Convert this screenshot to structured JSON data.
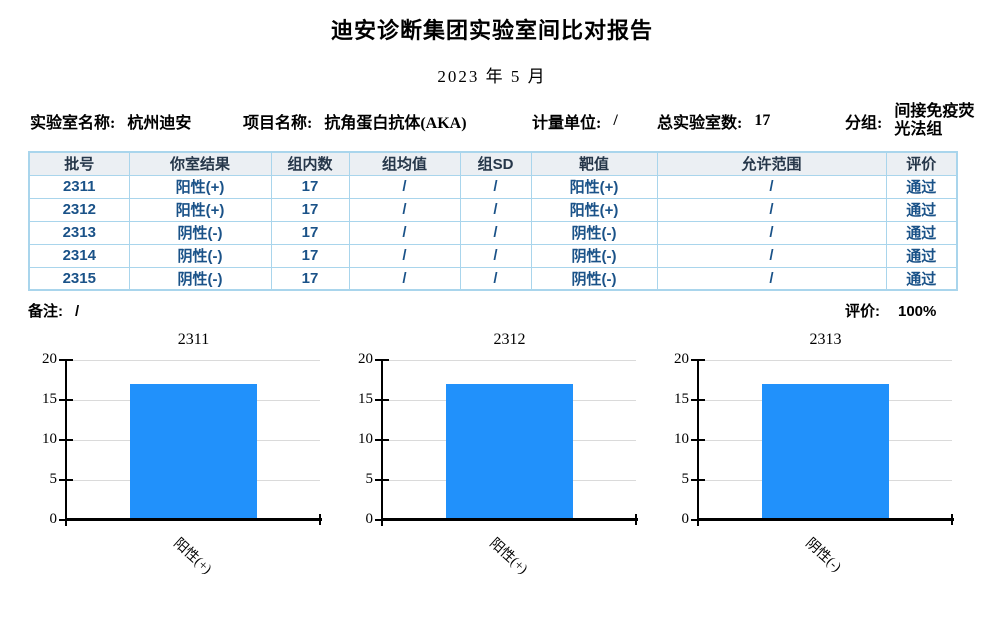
{
  "report": {
    "title": "迪安诊断集团实验室间比对报告",
    "date": "2023 年 5 月"
  },
  "info": {
    "fields": [
      {
        "label": "实验室名称:",
        "value": "杭州迪安"
      },
      {
        "label": "项目名称:",
        "value": "抗角蛋白抗体(AKA)"
      },
      {
        "label": "计量单位:",
        "value": "/"
      },
      {
        "label": "总实验室数:",
        "value": "17"
      },
      {
        "label": "分组:",
        "value": "间接免疫荧光法组"
      }
    ]
  },
  "table": {
    "headers": [
      "批号",
      "你室结果",
      "组内数",
      "组均值",
      "组SD",
      "靶值",
      "允许范围",
      "评价"
    ],
    "rows": [
      [
        "2311",
        "阳性(+)",
        "17",
        "/",
        "/",
        "阳性(+)",
        "/",
        "通过"
      ],
      [
        "2312",
        "阳性(+)",
        "17",
        "/",
        "/",
        "阳性(+)",
        "/",
        "通过"
      ],
      [
        "2313",
        "阴性(-)",
        "17",
        "/",
        "/",
        "阴性(-)",
        "/",
        "通过"
      ],
      [
        "2314",
        "阴性(-)",
        "17",
        "/",
        "/",
        "阴性(-)",
        "/",
        "通过"
      ],
      [
        "2315",
        "阴性(-)",
        "17",
        "/",
        "/",
        "阴性(-)",
        "/",
        "通过"
      ]
    ]
  },
  "footer": {
    "note_label": "备注:",
    "note_value": "/",
    "eval_label": "评价:",
    "eval_value": "100%"
  },
  "chart_data": [
    {
      "type": "bar",
      "title": "2311",
      "categories": [
        "阳性(+)"
      ],
      "values": [
        17
      ],
      "xlabel": "",
      "ylabel": "",
      "ylim": [
        0,
        20
      ],
      "yticks": [
        0,
        5,
        10,
        15,
        20
      ],
      "grid": true,
      "legend": "none"
    },
    {
      "type": "bar",
      "title": "2312",
      "categories": [
        "阳性(+)"
      ],
      "values": [
        17
      ],
      "xlabel": "",
      "ylabel": "",
      "ylim": [
        0,
        20
      ],
      "yticks": [
        0,
        5,
        10,
        15,
        20
      ],
      "grid": true,
      "legend": "none"
    },
    {
      "type": "bar",
      "title": "2313",
      "categories": [
        "阴性(-)"
      ],
      "values": [
        17
      ],
      "xlabel": "",
      "ylabel": "",
      "ylim": [
        0,
        20
      ],
      "yticks": [
        0,
        5,
        10,
        15,
        20
      ],
      "grid": true,
      "legend": "none"
    }
  ],
  "colors": {
    "bar": "#2191fb",
    "table_border": "#a9d5ec",
    "header_bg": "#ebeff3",
    "header_text": "#26374a",
    "cell_text": "#1a5288",
    "gridline": "#dadada"
  }
}
